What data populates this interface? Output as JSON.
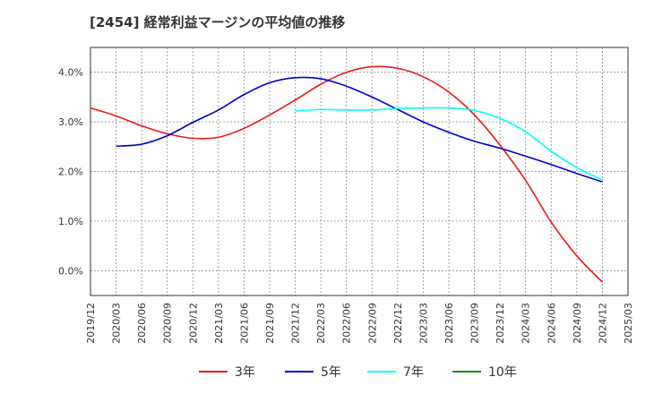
{
  "title": "[2454]  経常利益マージンの平均値の推移",
  "chart_data": {
    "type": "line",
    "title": "[2454]  経常利益マージンの平均値の推移",
    "xlabel": "",
    "ylabel": "",
    "x_ticks": [
      "2019/12",
      "2020/03",
      "2020/06",
      "2020/09",
      "2020/12",
      "2021/03",
      "2021/06",
      "2021/09",
      "2021/12",
      "2022/03",
      "2022/06",
      "2022/09",
      "2022/12",
      "2023/03",
      "2023/06",
      "2023/09",
      "2023/12",
      "2024/03",
      "2024/06",
      "2024/09",
      "2024/12",
      "2025/03"
    ],
    "y_ticks": [
      "0.0%",
      "1.0%",
      "2.0%",
      "3.0%",
      "4.0%"
    ],
    "ylim": [
      -0.5,
      4.5
    ],
    "grid": true,
    "legend_position": "bottom",
    "series": [
      {
        "name": "3年",
        "color": "#e41a1c",
        "x": [
          "2019/12",
          "2020/03",
          "2020/06",
          "2020/09",
          "2020/12",
          "2021/03",
          "2021/06",
          "2021/09",
          "2021/12",
          "2022/03",
          "2022/06",
          "2022/09",
          "2022/12",
          "2023/03",
          "2023/06",
          "2023/09",
          "2023/12",
          "2024/03",
          "2024/06",
          "2024/09",
          "2024/12"
        ],
        "values": [
          3.28,
          3.12,
          2.92,
          2.76,
          2.67,
          2.69,
          2.87,
          3.14,
          3.44,
          3.76,
          4.0,
          4.11,
          4.08,
          3.91,
          3.6,
          3.14,
          2.53,
          1.82,
          0.98,
          0.3,
          -0.23
        ]
      },
      {
        "name": "5年",
        "color": "#0000cd",
        "x": [
          "2020/03",
          "2020/06",
          "2020/09",
          "2020/12",
          "2021/03",
          "2021/06",
          "2021/09",
          "2021/12",
          "2022/03",
          "2022/06",
          "2022/09",
          "2022/12",
          "2023/03",
          "2023/06",
          "2023/09",
          "2023/12",
          "2024/03",
          "2024/06",
          "2024/09",
          "2024/12"
        ],
        "values": [
          2.51,
          2.55,
          2.72,
          2.99,
          3.24,
          3.55,
          3.79,
          3.89,
          3.87,
          3.72,
          3.5,
          3.25,
          3.0,
          2.79,
          2.61,
          2.47,
          2.31,
          2.14,
          1.96,
          1.79
        ]
      },
      {
        "name": "7年",
        "color": "#00ffff",
        "x": [
          "2021/12",
          "2022/03",
          "2022/06",
          "2022/09",
          "2022/12",
          "2023/03",
          "2023/06",
          "2023/09",
          "2023/12",
          "2024/03",
          "2024/06",
          "2024/09",
          "2024/12"
        ],
        "values": [
          3.22,
          3.25,
          3.24,
          3.24,
          3.27,
          3.28,
          3.28,
          3.23,
          3.07,
          2.8,
          2.41,
          2.08,
          1.83
        ]
      },
      {
        "name": "10年",
        "color": "#228b22",
        "x": [],
        "values": []
      }
    ]
  }
}
